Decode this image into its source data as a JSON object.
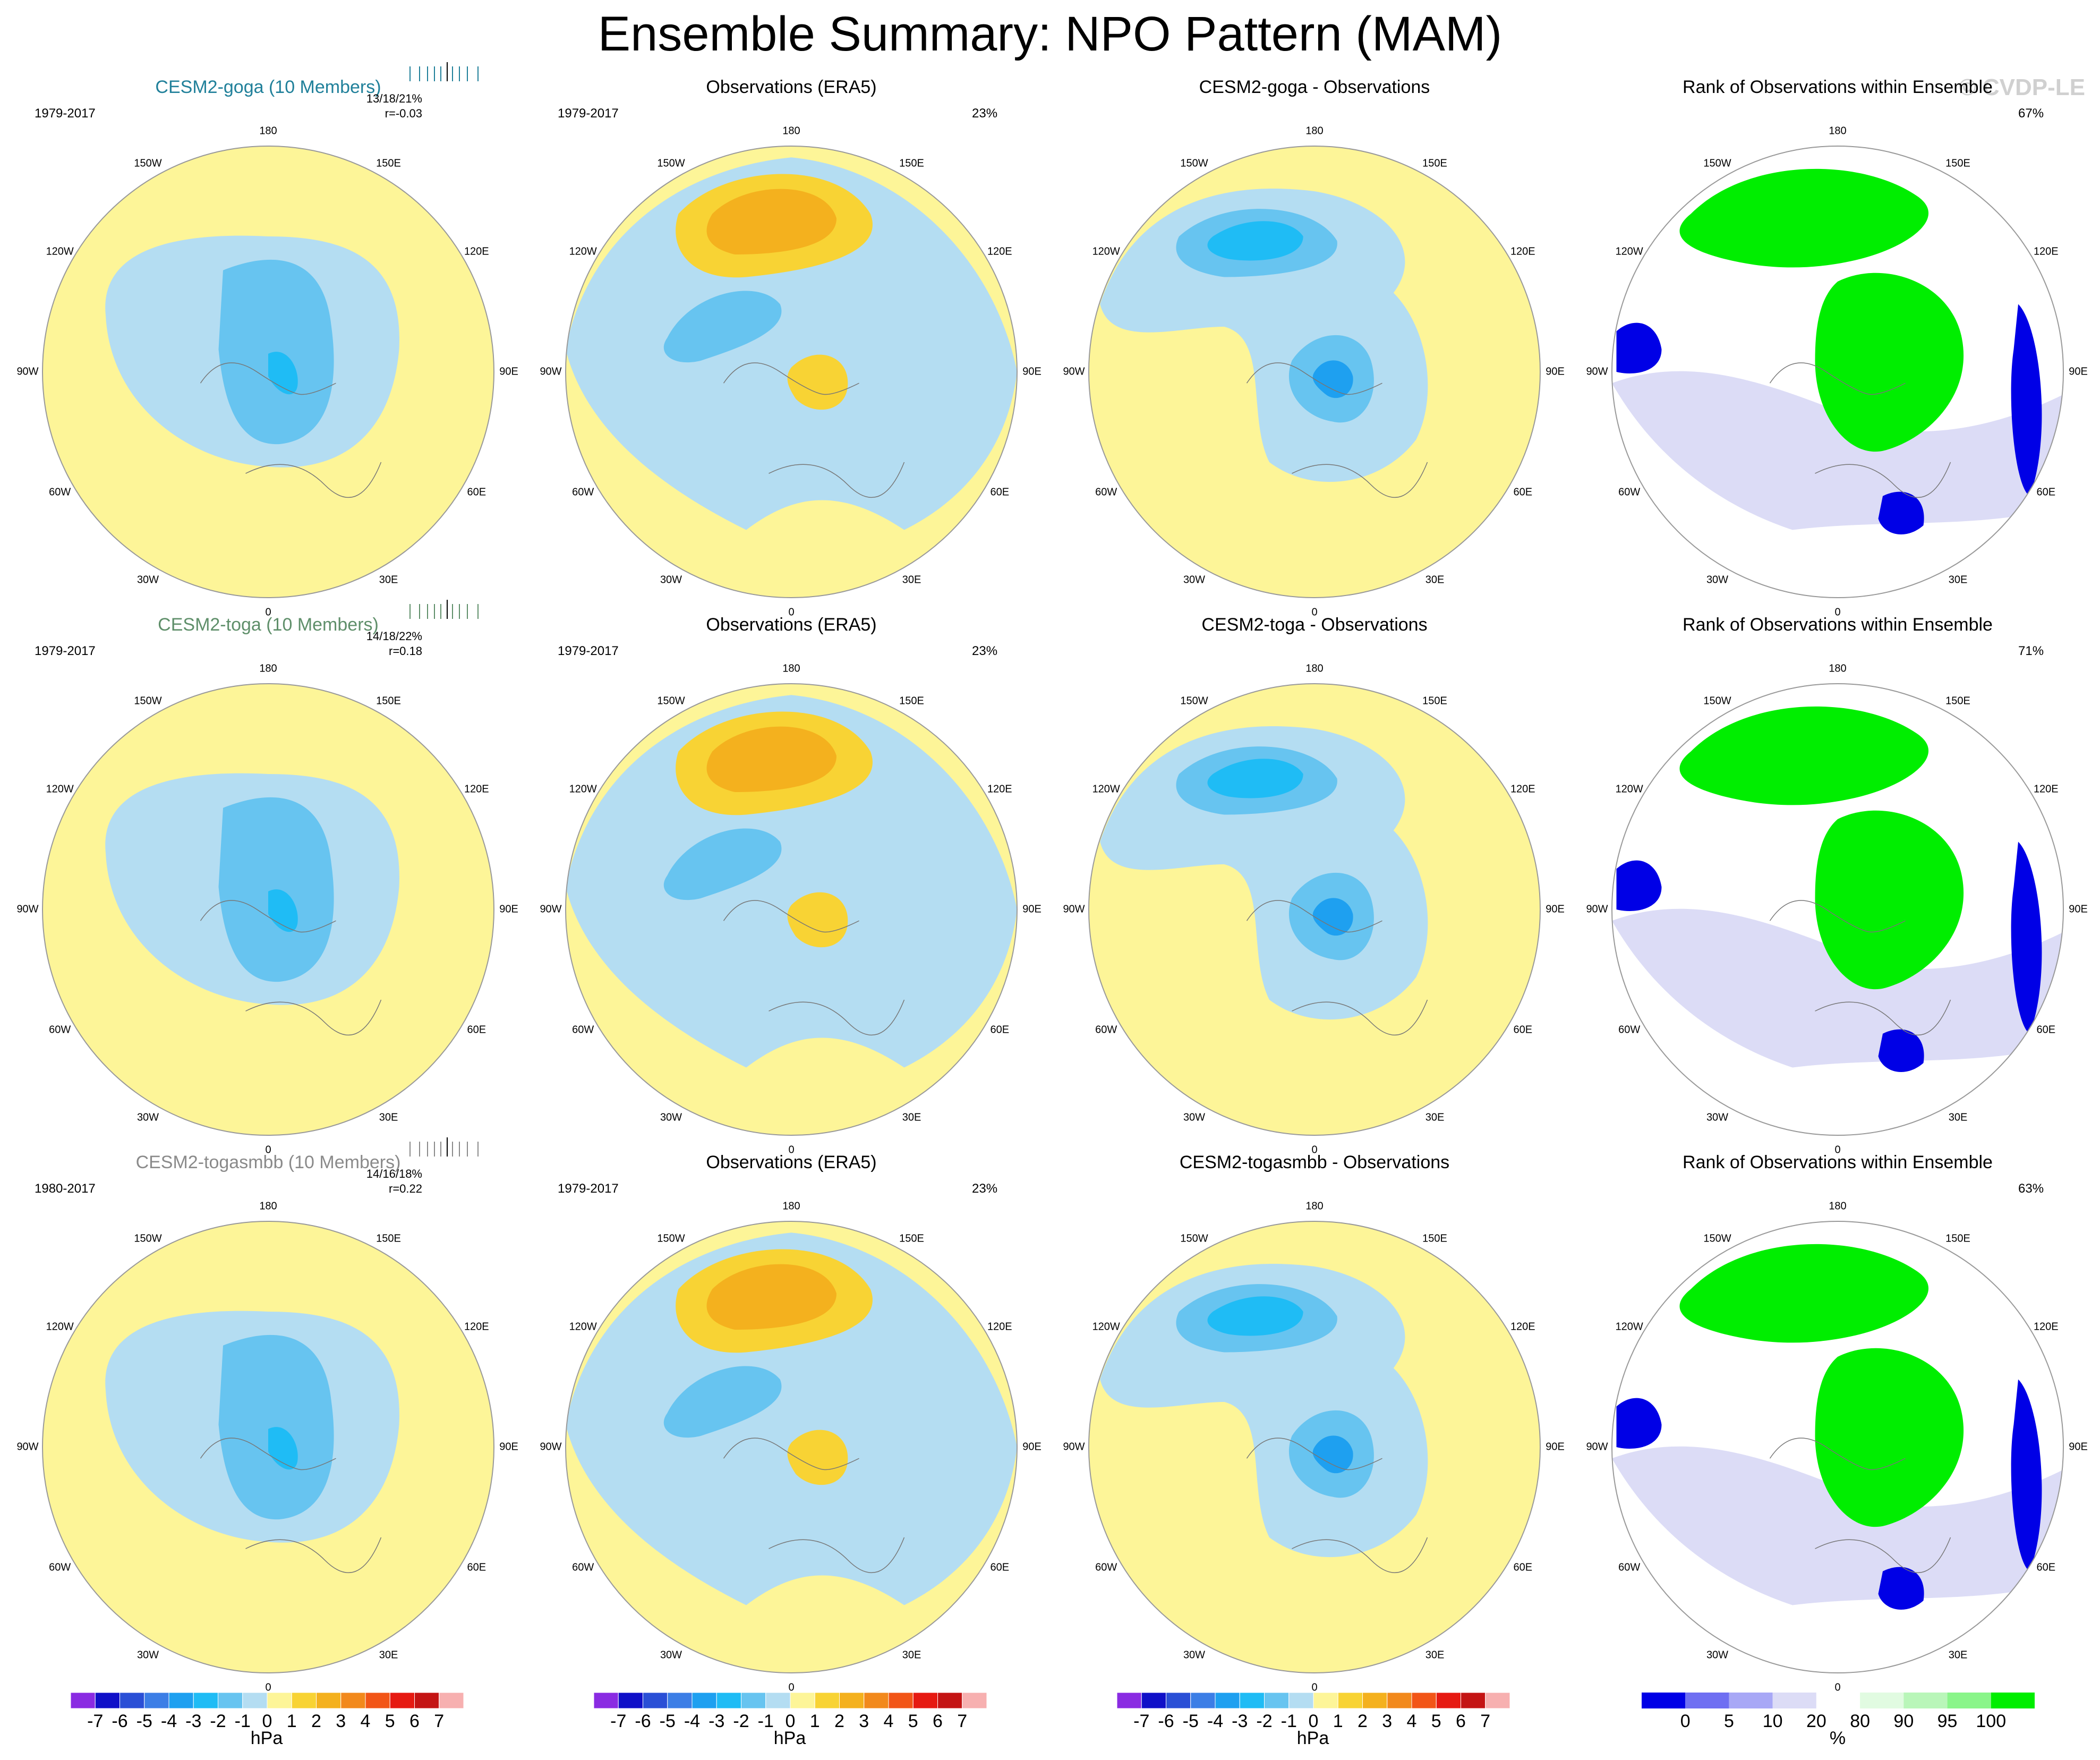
{
  "title": "Ensemble Summary: NPO Pattern (MAM)",
  "copyright": "© CVDP-LE",
  "lon_labels": [
    "180",
    "150E",
    "120E",
    "90E",
    "60E",
    "30E",
    "0",
    "30W",
    "60W",
    "90W",
    "120W",
    "150W"
  ],
  "rows": [
    {
      "ensemble": {
        "title": "CESM2-goga (10 Members)",
        "title_color": "#20809a",
        "years": "1979-2017",
        "stats": "13/18/21%",
        "corr": "r=-0.03"
      },
      "obs": {
        "title": "Observations (ERA5)",
        "years": "1979-2017",
        "pct": "23%"
      },
      "diff": {
        "title": "CESM2-goga - Observations"
      },
      "rank": {
        "title": "Rank of Observations within Ensemble",
        "pct": "67%"
      }
    },
    {
      "ensemble": {
        "title": "CESM2-toga (10 Members)",
        "title_color": "#5f8f6a",
        "years": "1979-2017",
        "stats": "14/18/22%",
        "corr": "r=0.18"
      },
      "obs": {
        "title": "Observations (ERA5)",
        "years": "1979-2017",
        "pct": "23%"
      },
      "diff": {
        "title": "CESM2-toga - Observations"
      },
      "rank": {
        "title": "Rank of Observations within Ensemble",
        "pct": "71%"
      }
    },
    {
      "ensemble": {
        "title": "CESM2-togasmbb (10 Members)",
        "title_color": "#8a8a8a",
        "years": "1980-2017",
        "stats": "14/16/18%",
        "corr": "r=0.22"
      },
      "obs": {
        "title": "Observations (ERA5)",
        "years": "1979-2017",
        "pct": "23%"
      },
      "diff": {
        "title": "CESM2-togasmbb - Observations"
      },
      "rank": {
        "title": "Rank of Observations within Ensemble",
        "pct": "63%"
      }
    }
  ],
  "chart_data": [
    {
      "type": "heatmap",
      "name": "hPa colorbar",
      "levels": [
        -7,
        -6,
        -5,
        -4,
        -3,
        -2,
        -1,
        0,
        1,
        2,
        3,
        4,
        5,
        6,
        7
      ],
      "tick_labels": [
        "-7",
        "-6",
        "-5",
        "-4",
        "-3",
        "-2",
        "-1",
        "0",
        "1",
        "2",
        "3",
        "4",
        "5",
        "6",
        "7"
      ],
      "colors": [
        "#8a2be2",
        "#1010c8",
        "#2a4fd6",
        "#3c7ee6",
        "#1ea0f0",
        "#1fbcf5",
        "#67c4f0",
        "#b4ddf2",
        "#fdf598",
        "#f8d334",
        "#f4b11e",
        "#f2891c",
        "#f25517",
        "#e61a12",
        "#c41414",
        "#f7b0b0"
      ],
      "unit": "hPa"
    },
    {
      "type": "heatmap",
      "name": "rank colorbar",
      "tick_labels": [
        "0",
        "5",
        "10",
        "20",
        "80",
        "90",
        "95",
        "100"
      ],
      "colors": [
        "#0000e6",
        "#6f6ff2",
        "#a8a8f6",
        "#dcdcf6",
        "#ffffff",
        "#e1fbe1",
        "#b9f6b9",
        "#8af58a",
        "#00ee00"
      ],
      "unit": "%"
    }
  ],
  "palette": {
    "yellow": "#fdf598",
    "lightblue": "#b4ddf2",
    "blue1": "#67c4f0",
    "blue2": "#1fbcf5",
    "blue3": "#1ea0f0",
    "orange1": "#f8d334",
    "orange2": "#f4b11e",
    "rank_green": "#00ee00",
    "rank_blue": "#0000e6",
    "rank_lav": "#dcdcf6",
    "rank_pale": "#e1fbe1"
  }
}
